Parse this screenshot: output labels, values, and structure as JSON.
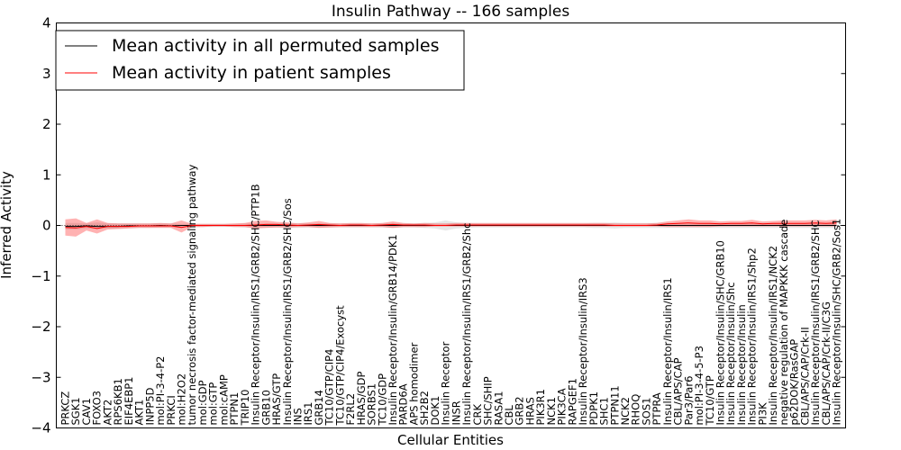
{
  "chart_data": {
    "type": "line",
    "title": "Insulin Pathway -- 166 samples",
    "xlabel": "Cellular Entities",
    "ylabel": "Inferred Activity",
    "ylim": [
      -4,
      4
    ],
    "yticks": [
      4,
      3,
      2,
      1,
      0,
      -1,
      -2,
      -3,
      -4
    ],
    "legend_position": "top-left",
    "categories": [
      "PRKCZ",
      "SGK1",
      "CAV1",
      "FOXO3",
      "AKT2",
      "RPS6KB1",
      "EIF4EBP1",
      "AKT1",
      "INPP5D",
      "mol:PI-3-4-P2",
      "PRKCI",
      "mol:H2O2",
      "tumor necrosis factor-mediated signaling pathway",
      "mol:GDP",
      "mol:GTP",
      "mol:cAMP",
      "PTPN1",
      "TRIP10",
      "Insulin Receptor/Insulin/IRS1/GRB2/SHC/PTP1B",
      "GRB10",
      "HRAS/GTP",
      "Insulin Receptor/Insulin/IRS1/GRB2/SHC/Sos",
      "INS",
      "IRS1",
      "GRB14",
      "TC10/GTP/CIP4",
      "TC10/GTP/CIP4/Exocyst",
      "F2RL2",
      "HRAS/GDP",
      "SORBS1",
      "TC10/GDP",
      "Insulin Receptor/Insulin/GRB14/PDK1",
      "PARD6A",
      "APS homodimer",
      "SH2B2",
      "DOK1",
      "Insulin Receptor",
      "INSR",
      "Insulin Receptor/Insulin/IRS1/GRB2/Shc",
      "CRK",
      "SHC/SHIP",
      "RASA1",
      "CBL",
      "GRB2",
      "HRAS",
      "PIK3R1",
      "NCK1",
      "PIK3CA",
      "RAPGEF1",
      "Insulin Receptor/Insulin/IRS3",
      "PDPK1",
      "SHC1",
      "PTPN11",
      "NCK2",
      "RHOQ",
      "SOS1",
      "PTPRA",
      "Insulin Receptor/Insulin/IRS1",
      "CBL/APS/CAP",
      "Par3/Par6",
      "mol:PI-3-4-5-P3",
      "TC10/GTP",
      "Insulin Receptor/Insulin/SHC/GRB10",
      "Insulin Receptor/Insulin/Shc",
      "Insulin Receptor/Insulin",
      "Insulin Receptor/Insulin/IRS1/Shp2",
      "PI3K",
      "Insulin Receptor/Insulin/IRS1/NCK2",
      "negative regulation of MAPKKK cascade",
      "p62DOK/RasGAP",
      "CBL/APS/CAP/Crk-II",
      "Insulin Receptor/Insulin/IRS1/GRB2/SHC",
      "CBL/APS/CAP/Crk-II/C3G",
      "Insulin Receptor/Insulin/SHC/GRB2/Sos1"
    ],
    "series": [
      {
        "name": "Mean activity in all permuted samples",
        "color": "#000000",
        "values": [
          -0.02,
          -0.02,
          -0.01,
          -0.02,
          -0.02,
          -0.02,
          -0.01,
          -0.01,
          -0.01,
          0,
          -0.01,
          0,
          0,
          0,
          0,
          0,
          0,
          0,
          0,
          0,
          0,
          0,
          0,
          0,
          0,
          0,
          0,
          0,
          0,
          0,
          0,
          0,
          0,
          0,
          0,
          0,
          0,
          0,
          0,
          0,
          0,
          0,
          0,
          0,
          0,
          0,
          0,
          0,
          0,
          0,
          0,
          0,
          0,
          0,
          0,
          0,
          0,
          0,
          0,
          0,
          0,
          0,
          0,
          0,
          0,
          0,
          0,
          0,
          0,
          0,
          0,
          0,
          0,
          0
        ],
        "band_low": [
          -0.08,
          -0.08,
          -0.06,
          -0.07,
          -0.06,
          -0.06,
          -0.05,
          -0.05,
          -0.05,
          -0.04,
          -0.04,
          -0.04,
          -0.03,
          -0.03,
          -0.03,
          -0.03,
          -0.03,
          -0.04,
          -0.04,
          -0.04,
          -0.04,
          -0.05,
          -0.05,
          -0.04,
          -0.04,
          -0.04,
          -0.04,
          -0.04,
          -0.04,
          -0.04,
          -0.04,
          -0.05,
          -0.04,
          -0.04,
          -0.05,
          -0.06,
          -0.1,
          -0.06,
          -0.05,
          -0.04,
          -0.04,
          -0.04,
          -0.04,
          -0.04,
          -0.04,
          -0.04,
          -0.04,
          -0.04,
          -0.04,
          -0.04,
          -0.05,
          -0.05,
          -0.06,
          -0.05,
          -0.05,
          -0.05,
          -0.05,
          -0.05,
          -0.05,
          -0.05,
          -0.05,
          -0.05,
          -0.05,
          -0.05,
          -0.05,
          -0.05,
          -0.05,
          -0.05,
          -0.05,
          -0.05,
          -0.05,
          -0.05,
          -0.05,
          -0.05
        ],
        "band_high": [
          0.05,
          0.05,
          0.04,
          0.06,
          0.04,
          0.04,
          0.04,
          0.04,
          0.04,
          0.04,
          0.04,
          0.03,
          0.03,
          0.03,
          0.03,
          0.03,
          0.03,
          0.04,
          0.04,
          0.04,
          0.04,
          0.05,
          0.05,
          0.04,
          0.04,
          0.04,
          0.04,
          0.04,
          0.04,
          0.04,
          0.04,
          0.05,
          0.04,
          0.04,
          0.05,
          0.06,
          0.1,
          0.06,
          0.05,
          0.04,
          0.04,
          0.04,
          0.04,
          0.04,
          0.04,
          0.04,
          0.04,
          0.04,
          0.04,
          0.04,
          0.05,
          0.05,
          0.06,
          0.05,
          0.05,
          0.05,
          0.05,
          0.05,
          0.05,
          0.05,
          0.05,
          0.05,
          0.05,
          0.05,
          0.05,
          0.05,
          0.05,
          0.05,
          0.05,
          0.05,
          0.05,
          0.05,
          0.05,
          0.05
        ]
      },
      {
        "name": "Mean activity in patient samples",
        "color": "#ff0000",
        "values": [
          -0.04,
          -0.05,
          -0.02,
          -0.06,
          -0.02,
          -0.02,
          -0.02,
          -0.01,
          -0.01,
          -0.01,
          -0.01,
          -0.04,
          0,
          0,
          0,
          0,
          0,
          0,
          0.01,
          0.02,
          0.02,
          0.01,
          0,
          0.01,
          0.02,
          0.01,
          0,
          0.01,
          0.01,
          0,
          0.01,
          0.02,
          0.01,
          0.01,
          0.01,
          0,
          0,
          0.01,
          0.01,
          0.01,
          0.01,
          0.01,
          0.01,
          0.01,
          0.01,
          0.01,
          0.01,
          0.01,
          0.01,
          0.01,
          0.01,
          0.01,
          0,
          0,
          0,
          0,
          0.01,
          0.03,
          0.04,
          0.05,
          0.04,
          0.04,
          0.03,
          0.04,
          0.04,
          0.05,
          0.03,
          0.04,
          0.04,
          0.04,
          0.04,
          0.05,
          0.04,
          0.05
        ],
        "band_low": [
          -0.2,
          -0.22,
          -0.1,
          -0.16,
          -0.08,
          -0.07,
          -0.06,
          -0.05,
          -0.05,
          -0.05,
          -0.05,
          -0.14,
          -0.03,
          -0.03,
          -0.02,
          -0.02,
          -0.03,
          -0.03,
          -0.06,
          -0.05,
          -0.04,
          -0.04,
          -0.03,
          -0.03,
          -0.05,
          -0.04,
          -0.03,
          -0.03,
          -0.03,
          -0.03,
          -0.03,
          -0.05,
          -0.03,
          -0.03,
          -0.03,
          -0.02,
          -0.02,
          -0.02,
          -0.02,
          -0.02,
          -0.02,
          -0.02,
          -0.02,
          -0.02,
          -0.02,
          -0.02,
          -0.02,
          -0.02,
          -0.02,
          -0.02,
          -0.02,
          -0.02,
          -0.02,
          -0.02,
          -0.02,
          -0.02,
          -0.02,
          -0.03,
          -0.03,
          -0.03,
          -0.03,
          -0.03,
          -0.02,
          -0.02,
          -0.02,
          -0.02,
          -0.02,
          -0.02,
          -0.02,
          -0.02,
          -0.02,
          -0.02,
          -0.02,
          -0.02
        ],
        "band_high": [
          0.12,
          0.14,
          0.05,
          0.12,
          0.05,
          0.04,
          0.04,
          0.04,
          0.04,
          0.05,
          0.04,
          0.1,
          0.03,
          0.03,
          0.03,
          0.03,
          0.04,
          0.05,
          0.09,
          0.1,
          0.07,
          0.06,
          0.04,
          0.06,
          0.09,
          0.05,
          0.04,
          0.05,
          0.05,
          0.04,
          0.05,
          0.08,
          0.05,
          0.04,
          0.05,
          0.04,
          0.04,
          0.05,
          0.05,
          0.05,
          0.05,
          0.05,
          0.05,
          0.05,
          0.05,
          0.05,
          0.05,
          0.05,
          0.05,
          0.05,
          0.05,
          0.05,
          0.04,
          0.04,
          0.04,
          0.04,
          0.05,
          0.08,
          0.1,
          0.12,
          0.1,
          0.1,
          0.08,
          0.09,
          0.09,
          0.11,
          0.08,
          0.09,
          0.1,
          0.1,
          0.1,
          0.11,
          0.1,
          0.12
        ]
      }
    ]
  }
}
